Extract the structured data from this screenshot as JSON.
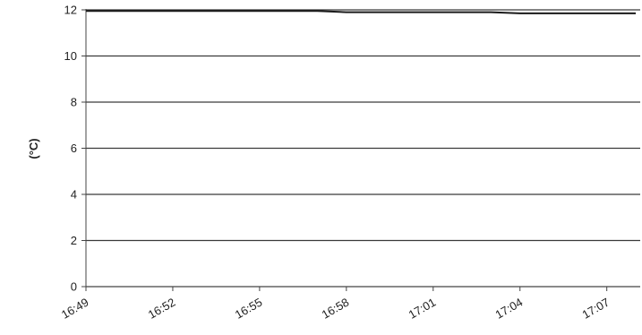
{
  "chart_data": {
    "type": "line",
    "title": "",
    "xlabel": "",
    "ylabel": "(°C)",
    "x_ticks": [
      "16:49",
      "16:52",
      "16:55",
      "16:58",
      "17:01",
      "17:04",
      "17:07"
    ],
    "y_ticks": [
      0,
      2,
      4,
      6,
      8,
      10,
      12
    ],
    "xlim": [
      "16:49",
      "17:08"
    ],
    "ylim": [
      0,
      12
    ],
    "grid": true,
    "legend": "none",
    "series": [
      {
        "x": [
          "16:49",
          "16:52",
          "16:55",
          "16:57",
          "16:58",
          "17:01",
          "17:03",
          "17:04",
          "17:07",
          "17:08"
        ],
        "y": [
          11.95,
          11.95,
          11.95,
          11.95,
          11.9,
          11.9,
          11.9,
          11.85,
          11.85,
          11.85
        ],
        "color": "#1a1a1a"
      }
    ]
  }
}
